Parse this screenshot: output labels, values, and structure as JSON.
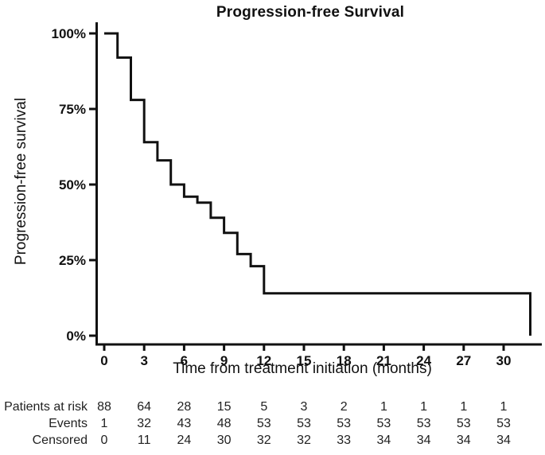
{
  "chart_data": {
    "type": "line",
    "subtype": "kaplan-meier-step",
    "title": "Progression-free Survival",
    "xlabel": "Time from treatment initiation (months)",
    "ylabel": "Progression-free survival",
    "x_ticks": [
      0,
      3,
      6,
      9,
      12,
      15,
      18,
      21,
      24,
      27,
      30
    ],
    "y_ticks": [
      {
        "value": 0,
        "label": "0%"
      },
      {
        "value": 25,
        "label": "25%"
      },
      {
        "value": 50,
        "label": "50%"
      },
      {
        "value": 75,
        "label": "75%"
      },
      {
        "value": 100,
        "label": "100%"
      }
    ],
    "xlim": [
      0,
      33
    ],
    "ylim": [
      0,
      100
    ],
    "grid": false,
    "legend": "none",
    "line_color": "#111111",
    "axis_color": "#111111",
    "steps_comment": "pairs of [month, survival% after step]; curve is a right-continuous staircase",
    "steps": [
      [
        0,
        100
      ],
      [
        1,
        92
      ],
      [
        2,
        78
      ],
      [
        3,
        64
      ],
      [
        4,
        58
      ],
      [
        5,
        50
      ],
      [
        6,
        46
      ],
      [
        7,
        44
      ],
      [
        8,
        39
      ],
      [
        9,
        34
      ],
      [
        10,
        27
      ],
      [
        11,
        23
      ],
      [
        12,
        14
      ],
      [
        32,
        14
      ],
      [
        32,
        0
      ]
    ]
  },
  "risk_table": {
    "columns_months": [
      0,
      3,
      6,
      9,
      12,
      15,
      18,
      21,
      24,
      27,
      30
    ],
    "rows": [
      {
        "label": "Patients at risk",
        "values": [
          88,
          64,
          28,
          15,
          5,
          3,
          2,
          1,
          1,
          1,
          1
        ]
      },
      {
        "label": "Events",
        "values": [
          1,
          32,
          43,
          48,
          53,
          53,
          53,
          53,
          53,
          53,
          53
        ]
      },
      {
        "label": "Censored",
        "values": [
          0,
          11,
          24,
          30,
          32,
          32,
          33,
          34,
          34,
          34,
          34
        ]
      }
    ]
  },
  "colors": {
    "background": "#ffffff",
    "text": "#1a1a1a",
    "curve": "#111111"
  }
}
